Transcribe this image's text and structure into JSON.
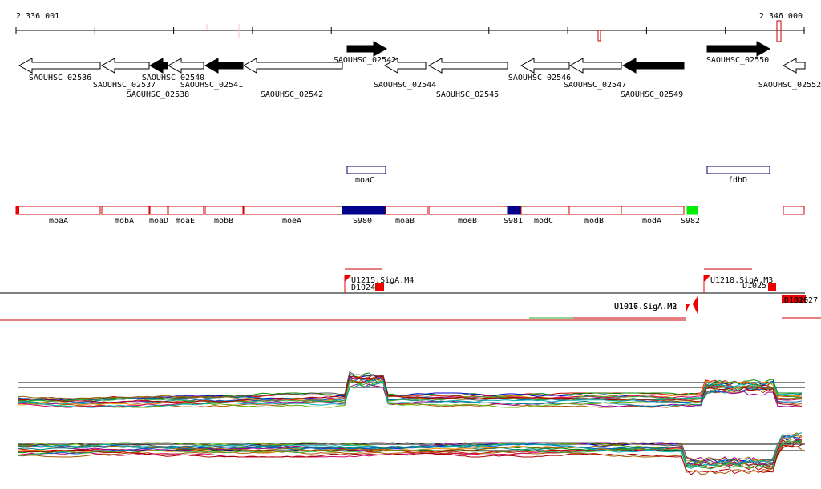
{
  "axis": {
    "start": "2 336 001",
    "end": "2 346 000"
  },
  "genes": [
    "SAOUHSC_02536",
    "SAOUHSC_02537",
    "SAOUHSC_02538",
    "SAOUHSC_02540",
    "SAOUHSC_02541",
    "SAOUHSC_02542",
    "SAOUHSC_02543",
    "SAOUHSC_02544",
    "SAOUHSC_02545",
    "SAOUHSC_02546",
    "SAOUHSC_02547",
    "SAOUHSC_02549",
    "SAOUHSC_02550",
    "SAOUHSC_02552"
  ],
  "products": [
    "moaC",
    "fdhD"
  ],
  "operons": [
    "moaA",
    "mobA",
    "moaD",
    "moaE",
    "mobB",
    "moeA",
    "S980",
    "moaB",
    "moeB",
    "S981",
    "modC",
    "modB",
    "modA",
    "S982"
  ],
  "promoters": [
    "U1215.SigA.M4",
    "U1218.SigA.M3",
    "U1016.SigA.M3",
    "U1017.SigA.M2"
  ],
  "terminators": [
    "D1024",
    "D1025",
    "D1026",
    "D1027"
  ]
}
